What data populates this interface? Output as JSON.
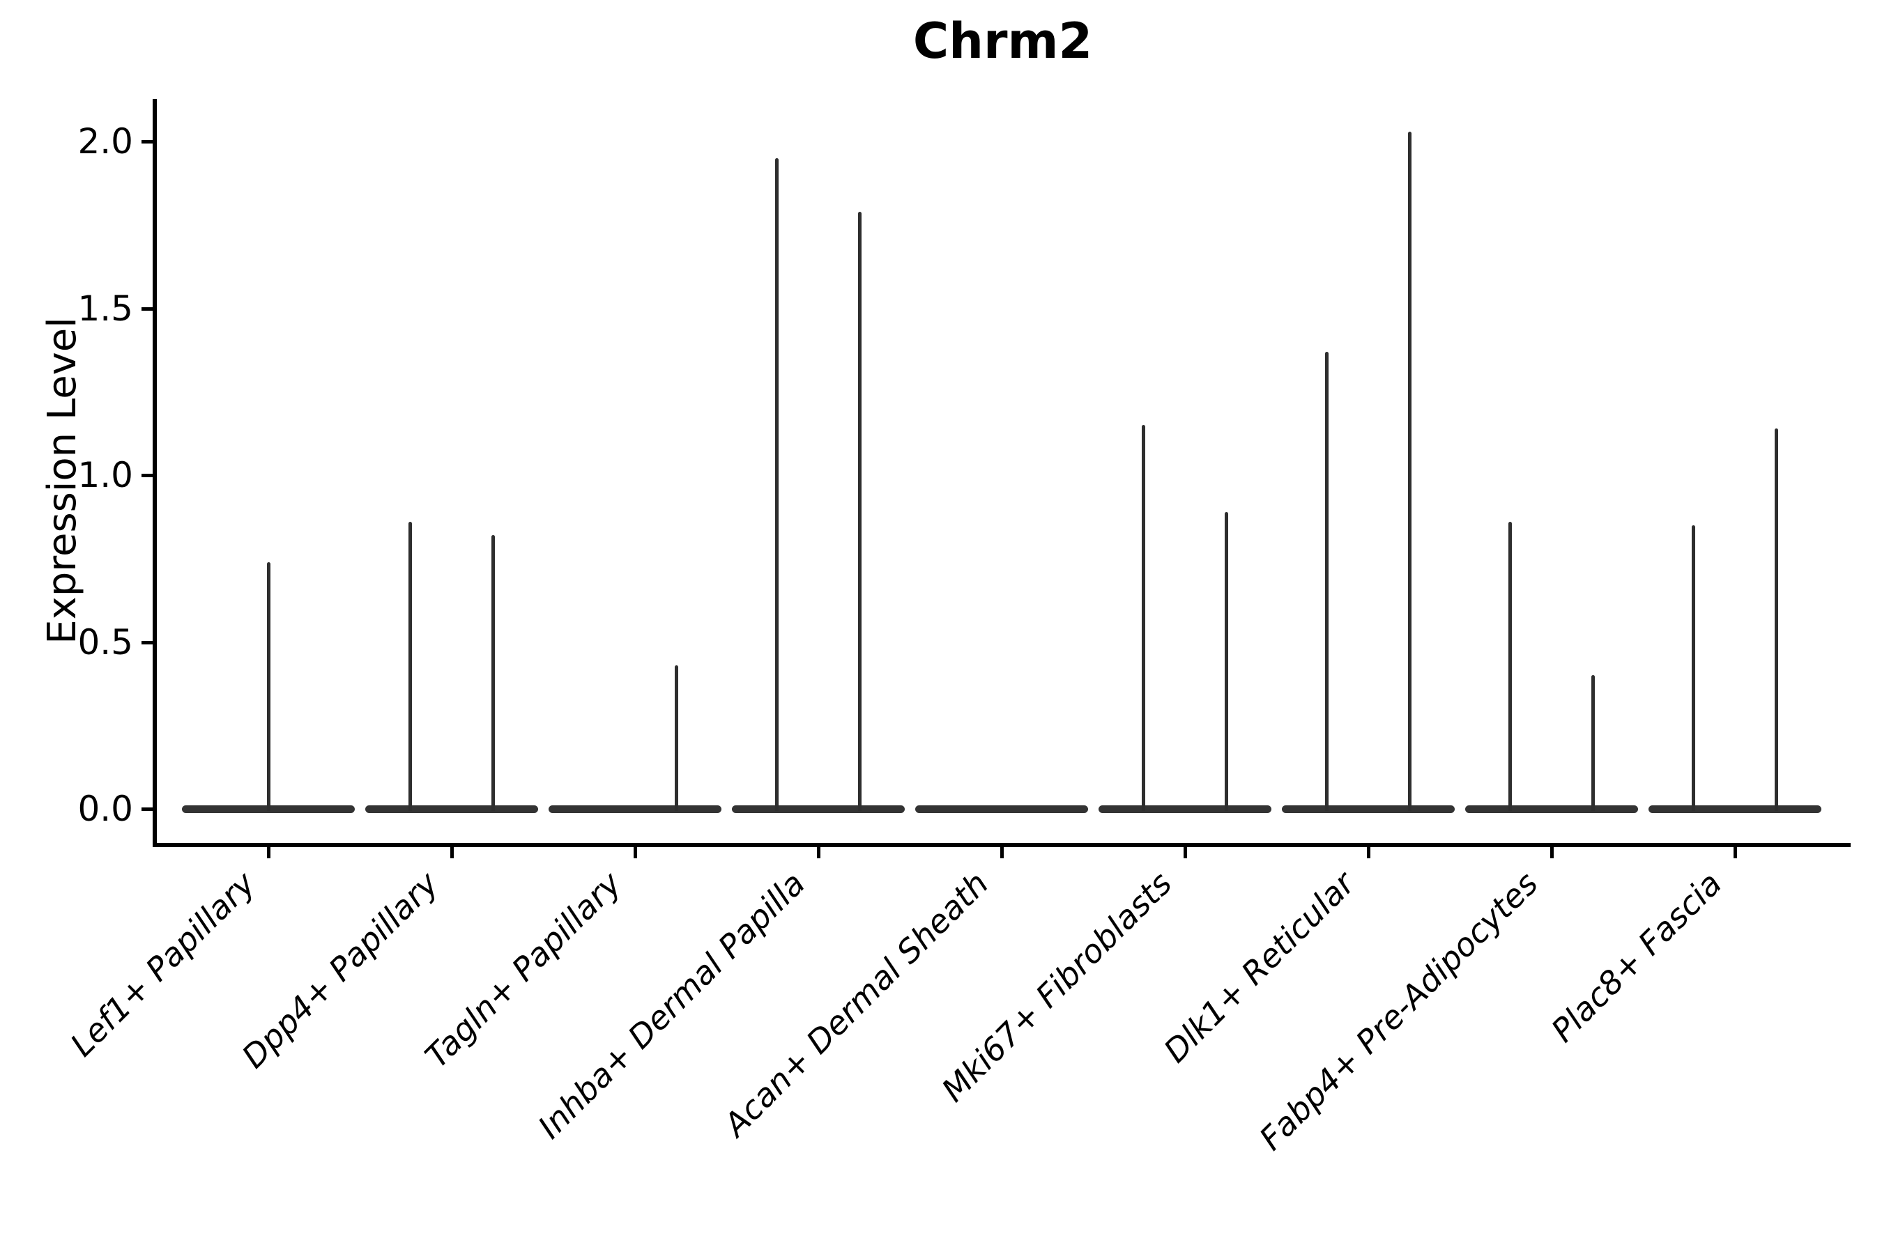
{
  "figure": {
    "title": "Chrm2",
    "background_color": "#ffffff",
    "axis_color": "#000000",
    "violin_color": "#2e2e2e"
  },
  "chart_data": {
    "type": "violin",
    "title": "Chrm2",
    "xlabel": "",
    "ylabel": "Expression Level",
    "grid": false,
    "legend": "none",
    "ylim": [
      -0.1,
      2.13
    ],
    "yticks": [
      {
        "label": "0.0",
        "value": 0.0
      },
      {
        "label": "0.5",
        "value": 0.5
      },
      {
        "label": "1.0",
        "value": 1.0
      },
      {
        "label": "1.5",
        "value": 1.5
      },
      {
        "label": "2.0",
        "value": 2.0
      }
    ],
    "categories": [
      "Lef1+ Papillary",
      "Dpp4+ Papillary",
      "Tagln+ Papillary",
      "Inhba+ Dermal Papilla",
      "Acan+ Dermal Sheath",
      "Mki67+ Fibroblasts",
      "Dlk1+ Reticular",
      "Fabp4+ Pre-Adipocytes",
      "Plac8+ Fascia"
    ],
    "violins": [
      {
        "category": "Lef1+ Papillary",
        "base_at": 0.0,
        "base_halfwidth_frac": 0.47,
        "spikes": [
          {
            "offset_frac": 0.0,
            "value": 0.74
          }
        ]
      },
      {
        "category": "Dpp4+ Papillary",
        "base_at": 0.0,
        "base_halfwidth_frac": 0.47,
        "spikes": [
          {
            "offset_frac": -0.225,
            "value": 0.86
          },
          {
            "offset_frac": 0.225,
            "value": 0.82
          }
        ]
      },
      {
        "category": "Tagln+ Papillary",
        "base_at": 0.0,
        "base_halfwidth_frac": 0.47,
        "spikes": [
          {
            "offset_frac": 0.225,
            "value": 0.43
          }
        ]
      },
      {
        "category": "Inhba+ Dermal Papilla",
        "base_at": 0.0,
        "base_halfwidth_frac": 0.47,
        "spikes": [
          {
            "offset_frac": -0.225,
            "value": 1.95
          },
          {
            "offset_frac": 0.225,
            "value": 1.79
          }
        ]
      },
      {
        "category": "Acan+ Dermal Sheath",
        "base_at": 0.0,
        "base_halfwidth_frac": 0.47,
        "spikes": []
      },
      {
        "category": "Mki67+ Fibroblasts",
        "base_at": 0.0,
        "base_halfwidth_frac": 0.47,
        "spikes": [
          {
            "offset_frac": -0.225,
            "value": 1.15
          },
          {
            "offset_frac": 0.225,
            "value": 0.89
          }
        ]
      },
      {
        "category": "Dlk1+ Reticular",
        "base_at": 0.0,
        "base_halfwidth_frac": 0.47,
        "spikes": [
          {
            "offset_frac": -0.225,
            "value": 1.37
          },
          {
            "offset_frac": 0.225,
            "value": 2.03
          }
        ]
      },
      {
        "category": "Fabp4+ Pre-Adipocytes",
        "base_at": 0.0,
        "base_halfwidth_frac": 0.47,
        "spikes": [
          {
            "offset_frac": -0.225,
            "value": 0.86
          },
          {
            "offset_frac": 0.225,
            "value": 0.4
          }
        ]
      },
      {
        "category": "Plac8+ Fascia",
        "base_at": 0.0,
        "base_halfwidth_frac": 0.47,
        "spikes": [
          {
            "offset_frac": -0.225,
            "value": 0.85
          },
          {
            "offset_frac": 0.225,
            "value": 1.14
          }
        ]
      }
    ]
  }
}
